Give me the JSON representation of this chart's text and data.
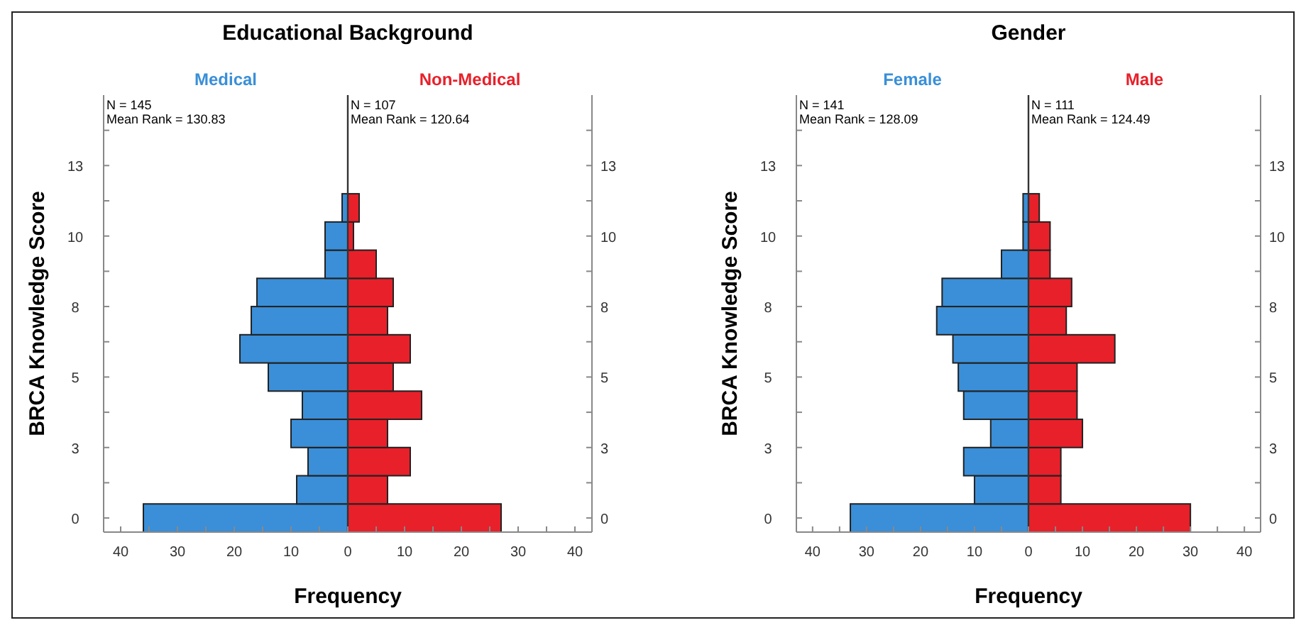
{
  "chart_data": [
    {
      "type": "bar",
      "orientation": "horizontal",
      "stacked": true,
      "title": "Educational Background",
      "xlabel": "Frequency",
      "ylabel": "BRCA Knowledge Score",
      "x": [
        0,
        1,
        2,
        3,
        4,
        5,
        6,
        7,
        8,
        9,
        10,
        11
      ],
      "series": [
        {
          "name": "Medical",
          "color": "#3a8fd8",
          "values": [
            -36,
            -9,
            -7,
            -10,
            -8,
            -14,
            -19,
            -17,
            -16,
            -4,
            -4,
            -1
          ]
        },
        {
          "name": "Non-Medical",
          "color": "#e8202a",
          "values": [
            27,
            7,
            11,
            7,
            13,
            8,
            11,
            7,
            8,
            5,
            1,
            2
          ]
        }
      ],
      "xlim": [
        -43,
        43
      ],
      "xticks": [
        {
          "value": -40,
          "label": "40"
        },
        {
          "value": -35,
          "label": null
        },
        {
          "value": -30,
          "label": "30"
        },
        {
          "value": -25,
          "label": null
        },
        {
          "value": -20,
          "label": "20"
        },
        {
          "value": -15,
          "label": null
        },
        {
          "value": -10,
          "label": "10"
        },
        {
          "value": -5,
          "label": null
        },
        0,
        {
          "value": 5,
          "label": null
        },
        10,
        {
          "value": 15,
          "label": null
        },
        20,
        {
          "value": 25,
          "label": null
        },
        30,
        {
          "value": 35,
          "label": null
        },
        40
      ],
      "ylim": [
        -0.5,
        15
      ],
      "yticks": [
        0,
        {
          "value": 1.25,
          "label": null
        },
        {
          "value": 2.5,
          "label": "3"
        },
        {
          "value": 3.75,
          "label": null
        },
        5,
        {
          "value": 6.25,
          "label": null
        },
        {
          "value": 7.5,
          "label": "8"
        },
        {
          "value": 8.75,
          "label": null
        },
        10,
        {
          "value": 11.25,
          "label": null
        },
        {
          "value": 12.5,
          "label": "13"
        },
        {
          "value": 13.75,
          "label": null
        }
      ],
      "y2lim": [
        -0.5,
        15
      ],
      "y2ticks": [
        0,
        {
          "value": 1.25,
          "label": null
        },
        {
          "value": 2.5,
          "label": "3"
        },
        {
          "value": 3.75,
          "label": null
        },
        5,
        {
          "value": 6.25,
          "label": null
        },
        {
          "value": 7.5,
          "label": "8"
        },
        {
          "value": 8.75,
          "label": null
        },
        10,
        {
          "value": 11.25,
          "label": null
        },
        {
          "value": 12.5,
          "label": "13"
        },
        {
          "value": 13.75,
          "label": null
        }
      ],
      "annotations": [
        "N = 145",
        "Mean Rank = 130.83",
        "N = 107",
        "Mean Rank = 120.64"
      ]
    },
    {
      "type": "bar",
      "orientation": "horizontal",
      "stacked": true,
      "title": "Gender",
      "xlabel": "Frequency",
      "ylabel": "BRCA Knowledge Score",
      "x": [
        0,
        1,
        2,
        3,
        4,
        5,
        6,
        7,
        8,
        9,
        10,
        11
      ],
      "series": [
        {
          "name": "Female",
          "color": "#3a8fd8",
          "values": [
            -33,
            -10,
            -12,
            -7,
            -12,
            -13,
            -14,
            -17,
            -16,
            -5,
            -1,
            -1
          ]
        },
        {
          "name": "Male",
          "color": "#e8202a",
          "values": [
            30,
            6,
            6,
            10,
            9,
            9,
            16,
            7,
            8,
            4,
            4,
            2
          ]
        }
      ],
      "xlim": [
        -43,
        43
      ],
      "xticks": [
        {
          "value": -40,
          "label": "40"
        },
        {
          "value": -35,
          "label": null
        },
        {
          "value": -30,
          "label": "30"
        },
        {
          "value": -25,
          "label": null
        },
        {
          "value": -20,
          "label": "20"
        },
        {
          "value": -15,
          "label": null
        },
        {
          "value": -10,
          "label": "10"
        },
        {
          "value": -5,
          "label": null
        },
        0,
        {
          "value": 5,
          "label": null
        },
        10,
        {
          "value": 15,
          "label": null
        },
        20,
        {
          "value": 25,
          "label": null
        },
        30,
        {
          "value": 35,
          "label": null
        },
        40
      ],
      "ylim": [
        -0.5,
        15
      ],
      "yticks": [
        0,
        {
          "value": 1.25,
          "label": null
        },
        {
          "value": 2.5,
          "label": "3"
        },
        {
          "value": 3.75,
          "label": null
        },
        5,
        {
          "value": 6.25,
          "label": null
        },
        {
          "value": 7.5,
          "label": "8"
        },
        {
          "value": 8.75,
          "label": null
        },
        10,
        {
          "value": 11.25,
          "label": null
        },
        {
          "value": 12.5,
          "label": "13"
        },
        {
          "value": 13.75,
          "label": null
        }
      ],
      "y2lim": [
        -0.5,
        15
      ],
      "y2ticks": [
        0,
        {
          "value": 1.25,
          "label": null
        },
        {
          "value": 2.5,
          "label": "3"
        },
        {
          "value": 3.75,
          "label": null
        },
        5,
        {
          "value": 6.25,
          "label": null
        },
        {
          "value": 7.5,
          "label": "8"
        },
        {
          "value": 8.75,
          "label": null
        },
        10,
        {
          "value": 11.25,
          "label": null
        },
        {
          "value": 12.5,
          "label": "13"
        },
        {
          "value": 13.75,
          "label": null
        }
      ],
      "annotations": [
        "N = 141",
        "Mean Rank = 128.09",
        "N = 111",
        "Mean Rank = 124.49"
      ]
    }
  ]
}
